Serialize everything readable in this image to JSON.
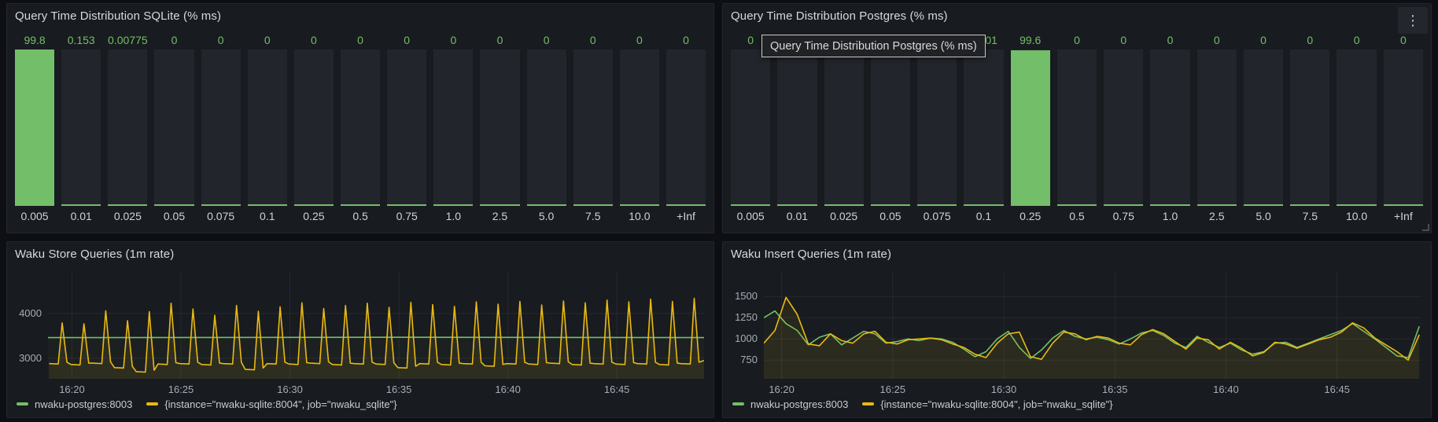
{
  "colors": {
    "page_bg": "#0d0f14",
    "panel_bg": "#181b1f",
    "bar_track": "#22252b",
    "green": "#73bf69",
    "yellow": "#e9b913",
    "grid": "rgba(204,204,220,0.08)"
  },
  "icons": {
    "kebab_menu": "⋮"
  },
  "tooltip": {
    "text": "Query Time Distribution Postgres (% ms)"
  },
  "chart_data": [
    {
      "type": "bar",
      "title": "Query Time Distribution SQLite (% ms)",
      "categories": [
        "0.005",
        "0.01",
        "0.025",
        "0.05",
        "0.075",
        "0.1",
        "0.25",
        "0.5",
        "0.75",
        "1.0",
        "2.5",
        "5.0",
        "7.5",
        "10.0",
        "+Inf"
      ],
      "values": [
        99.8,
        0.153,
        0.00775,
        0,
        0,
        0,
        0,
        0,
        0,
        0,
        0,
        0,
        0,
        0,
        0
      ],
      "value_labels": [
        "99.8",
        "0.153",
        "0.00775",
        "0",
        "0",
        "0",
        "0",
        "0",
        "0",
        "0",
        "0",
        "0",
        "0",
        "0",
        "0"
      ],
      "ylim": [
        0,
        100
      ],
      "bar_color": "#73bf69"
    },
    {
      "type": "bar",
      "title": "Query Time Distribution Postgres (% ms)",
      "categories": [
        "0.005",
        "0.01",
        "0.025",
        "0.05",
        "0.075",
        "0.1",
        "0.25",
        "0.5",
        "0.75",
        "1.0",
        "2.5",
        "5.0",
        "7.5",
        "10.0",
        "+Inf"
      ],
      "values": [
        0,
        0,
        0,
        0,
        0,
        0.401,
        99.6,
        0,
        0,
        0,
        0,
        0,
        0,
        0,
        0
      ],
      "value_labels": [
        "0",
        "0",
        "0",
        "0",
        "0",
        "0.401",
        "99.6",
        "0",
        "0",
        "0",
        "0",
        "0",
        "0",
        "0",
        "0"
      ],
      "ylim": [
        0,
        100
      ],
      "bar_color": "#73bf69"
    },
    {
      "type": "line",
      "title": "Waku Store Queries (1m rate)",
      "x_range_min": [
        18.9,
        49.0
      ],
      "ylim": [
        2540,
        4930
      ],
      "y_ticks": [
        {
          "v": 3000,
          "label": "3000"
        },
        {
          "v": 4000,
          "label": "4000"
        }
      ],
      "x_ticks": [
        {
          "v": 20,
          "label": "16:20"
        },
        {
          "v": 25,
          "label": "16:25"
        },
        {
          "v": 30,
          "label": "16:30"
        },
        {
          "v": 35,
          "label": "16:35"
        },
        {
          "v": 40,
          "label": "16:40"
        },
        {
          "v": 45,
          "label": "16:45"
        }
      ],
      "series": [
        {
          "name": "nwaku-postgres:8003",
          "color": "#73bf69",
          "kind": "flat",
          "value": 3460,
          "fill_opacity": 0.04
        },
        {
          "name": "{instance=\"nwaku-sqlite:8004\", job=\"nwaku_sqlite\"}",
          "color": "#e9b913",
          "kind": "cycles",
          "start_min": 18.95,
          "period_min": 1.0,
          "end_value": 2950,
          "fill_opacity": 0.09,
          "peaks": [
            3790,
            3770,
            4060,
            3840,
            4040,
            4230,
            4100,
            3960,
            4180,
            4050,
            4150,
            4240,
            4110,
            4180,
            4230,
            4140,
            4250,
            4200,
            4160,
            4260,
            4210,
            4270,
            4190,
            4280,
            4240,
            4300,
            4260,
            4320,
            4270,
            4340
          ],
          "valleys": [
            2880,
            2860,
            2890,
            2790,
            2700,
            2870,
            2880,
            2860,
            2880,
            2750,
            2880,
            2870,
            2890,
            2860,
            2880,
            2870,
            2790,
            2880,
            2860,
            2880,
            2830,
            2880,
            2870,
            2890,
            2860,
            2880,
            2870,
            2880,
            2860,
            2880
          ]
        }
      ]
    },
    {
      "type": "line",
      "title": "Waku Insert Queries (1m rate)",
      "x_range_min": [
        19.2,
        48.8
      ],
      "ylim": [
        530,
        1790
      ],
      "y_ticks": [
        {
          "v": 750,
          "label": "750"
        },
        {
          "v": 1000,
          "label": "1000"
        },
        {
          "v": 1250,
          "label": "1250"
        },
        {
          "v": 1500,
          "label": "1500"
        }
      ],
      "x_ticks": [
        {
          "v": 20,
          "label": "16:20"
        },
        {
          "v": 25,
          "label": "16:25"
        },
        {
          "v": 30,
          "label": "16:30"
        },
        {
          "v": 35,
          "label": "16:35"
        },
        {
          "v": 40,
          "label": "16:40"
        },
        {
          "v": 45,
          "label": "16:45"
        }
      ],
      "series": [
        {
          "name": "nwaku-postgres:8003",
          "color": "#73bf69",
          "kind": "sampled",
          "x_start_min": 19.2,
          "x_step_min": 0.5,
          "fill_opacity": 0.04,
          "values": [
            1250,
            1330,
            1180,
            1100,
            930,
            1020,
            1060,
            930,
            1010,
            1090,
            1060,
            950,
            970,
            1000,
            980,
            1010,
            1000,
            960,
            880,
            790,
            850,
            1000,
            1090,
            900,
            770,
            870,
            1010,
            1100,
            1030,
            1000,
            1020,
            990,
            940,
            1000,
            1070,
            1100,
            1040,
            950,
            900,
            1030,
            960,
            900,
            950,
            870,
            820,
            850,
            950,
            960,
            900,
            950,
            1000,
            1050,
            1100,
            1180,
            1090,
            1000,
            900,
            800,
            780,
            1150
          ]
        },
        {
          "name": "{instance=\"nwaku-sqlite:8004\", job=\"nwaku_sqlite\"}",
          "color": "#e9b913",
          "kind": "sampled",
          "x_start_min": 19.2,
          "x_step_min": 0.5,
          "fill_opacity": 0.08,
          "values": [
            950,
            1100,
            1490,
            1290,
            940,
            920,
            1060,
            980,
            950,
            1060,
            1090,
            960,
            940,
            990,
            1000,
            1010,
            990,
            940,
            900,
            820,
            780,
            950,
            1060,
            1080,
            790,
            760,
            950,
            1080,
            1060,
            990,
            1030,
            1010,
            950,
            930,
            1050,
            1110,
            1060,
            970,
            880,
            1010,
            990,
            880,
            960,
            890,
            800,
            840,
            960,
            940,
            890,
            940,
            990,
            1020,
            1080,
            1190,
            1130,
            1010,
            930,
            850,
            750,
            1050
          ]
        }
      ]
    }
  ]
}
